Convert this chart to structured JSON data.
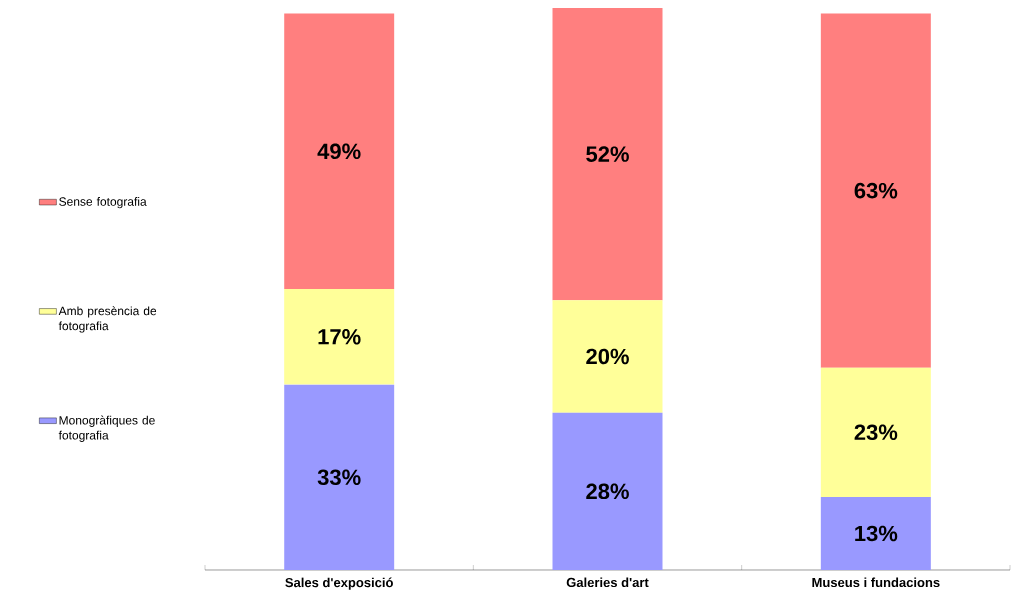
{
  "chart_data": {
    "type": "bar",
    "stacked": true,
    "categories": [
      "Sales d'exposició",
      "Galeries d'art",
      "Museus i fundacions"
    ],
    "series": [
      {
        "name": "Monogràfiques de fotografia",
        "color": "#9999ff",
        "values": [
          33,
          28,
          13
        ],
        "value_labels": [
          "33%",
          "28%",
          "13%"
        ]
      },
      {
        "name": "Amb presència de fotografia",
        "color": "#ffff99",
        "values": [
          17,
          20,
          23
        ],
        "value_labels": [
          "17%",
          "20%",
          "23%"
        ]
      },
      {
        "name": "Sense fotografia",
        "color": "#ff7f7f",
        "values": [
          49,
          52,
          63
        ],
        "value_labels": [
          "49%",
          "52%",
          "63%"
        ]
      }
    ],
    "legend": "left"
  }
}
